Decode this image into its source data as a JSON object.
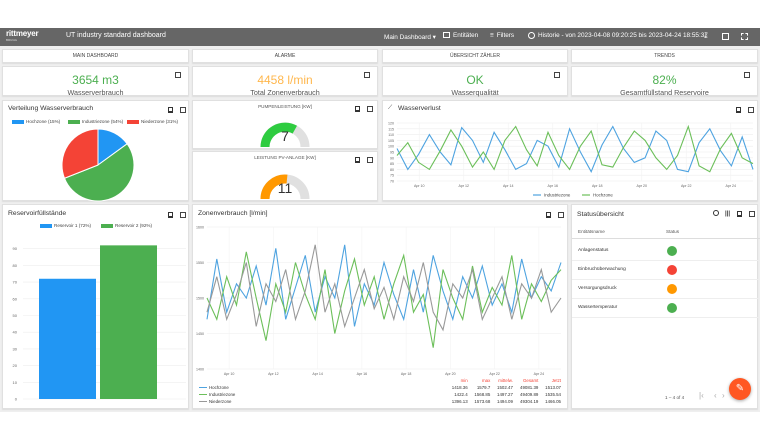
{
  "header": {
    "brand": "rittmeyer",
    "brand_sub": "BRUGG",
    "title": "UT industry standard dashboard",
    "menu": "Main Dashboard",
    "entities": "Entitäten",
    "filters": "Filters",
    "history": "Historie - von 2023-04-08 09:20:25 bis 2023-04-24 18:55:37"
  },
  "nav": [
    "MAIN DASHBOARD",
    "ALARME",
    "ÜBERSICHT ZÄHLER",
    "TRENDS"
  ],
  "kpis": [
    {
      "value": "3654 m3",
      "label": "Wasserverbrauch",
      "color": "#4caf50"
    },
    {
      "value": "4458 l/min",
      "label": "Total Zonenverbrauch",
      "color": "#ffb74d"
    },
    {
      "value": "OK",
      "label": "Wasserqualität",
      "color": "#4caf50"
    },
    {
      "value": "82%",
      "label": "Gesamtfüllstand Reservoire",
      "color": "#4caf50"
    }
  ],
  "pie": {
    "title": "Verteilung Wasserverbrauch",
    "legend": [
      "Hochzone (15%)",
      "Industriezone (54%)",
      "Niederzone (31%)"
    ]
  },
  "gauges": [
    {
      "title": "PUMPENLEISTUNG [KW]",
      "value": "7"
    },
    {
      "title": "LEISTUNG PV-ANLAGE [KW]",
      "value": "11"
    }
  ],
  "wasserverlust": {
    "title": "Wasserverlust",
    "legend": [
      "Industriezone",
      "Hochzone"
    ]
  },
  "reservoir": {
    "title": "Reservoirfüllstände",
    "legend": [
      "Reservoir 1 (72%)",
      "Reservoir 2 (92%)"
    ]
  },
  "zonen": {
    "title": "Zonenverbrauch [l/min]",
    "table": {
      "headers": [
        "min",
        "max",
        "mittelw.",
        "Gesamt",
        "Jetzt"
      ],
      "rows": [
        {
          "name": "Hochzone",
          "vals": [
            "1418.36",
            "1579.7",
            "1502.47",
            "49081.39",
            "1513.07"
          ]
        },
        {
          "name": "Industriezone",
          "vals": [
            "1422.4",
            "1568.85",
            "1497.27",
            "49409.89",
            "1535.54"
          ]
        },
        {
          "name": "Niederzone",
          "vals": [
            "1396.13",
            "1573.68",
            "1494.09",
            "49304.19",
            "1466.05"
          ]
        }
      ]
    }
  },
  "status": {
    "title": "Statusübersicht",
    "col_name": "Entitätsname",
    "col_status": "Status",
    "rows": [
      {
        "name": "Anlagenstatus",
        "color": "#4caf50"
      },
      {
        "name": "Einbruchüberwachung",
        "color": "#f44336"
      },
      {
        "name": "Versorgungsdruck",
        "color": "#ff9800"
      },
      {
        "name": "Wassertemperatur",
        "color": "#4caf50"
      }
    ],
    "pagination": "1 – 4 of 4"
  },
  "chart_data": [
    {
      "type": "pie",
      "title": "Verteilung Wasserverbrauch",
      "categories": [
        "Hochzone",
        "Industriezone",
        "Niederzone"
      ],
      "values": [
        15,
        54,
        31
      ],
      "colors": [
        "#2196f3",
        "#4caf50",
        "#f44336"
      ]
    },
    {
      "type": "bar",
      "title": "Reservoirfüllstände",
      "categories": [
        "Reservoir 1",
        "Reservoir 2"
      ],
      "values": [
        72,
        92
      ],
      "colors": [
        "#2196f3",
        "#4caf50"
      ],
      "ylim": [
        0,
        100
      ],
      "yticks": [
        0,
        10,
        20,
        30,
        40,
        50,
        60,
        70,
        80,
        90
      ]
    },
    {
      "type": "line",
      "title": "Wasserverlust",
      "ylim": [
        70,
        120
      ],
      "yticks": [
        70,
        75,
        80,
        85,
        90,
        95,
        100,
        105,
        110,
        115,
        120
      ],
      "xticks": [
        "Apr 10",
        "Apr 12",
        "Apr 14",
        "Apr 16",
        "Apr 18",
        "Apr 20",
        "Apr 22",
        "Apr 24"
      ],
      "series": [
        {
          "name": "Industriezone",
          "color": "#4ea3e0",
          "values": [
            98,
            80,
            93,
            110,
            95,
            84,
            116,
            105,
            86,
            112,
            97,
            80,
            85,
            105,
            100,
            82,
            115,
            95,
            78,
            101,
            117,
            98,
            86,
            90,
            113,
            105,
            80,
            78,
            103,
            115,
            96,
            83,
            108,
            80
          ]
        },
        {
          "name": "Hochzone",
          "color": "#6cbf5a",
          "values": [
            92,
            103,
            86,
            80,
            96,
            114,
            100,
            82,
            95,
            80,
            105,
            117,
            97,
            83,
            112,
            92,
            80,
            100,
            113,
            84,
            82,
            99,
            113,
            105,
            90,
            80,
            92,
            117,
            83,
            78,
            98,
            111,
            90,
            85
          ]
        }
      ]
    },
    {
      "type": "line",
      "title": "Zonenverbrauch [l/min]",
      "ylim": [
        1400,
        1600
      ],
      "yticks": [
        1400,
        1450,
        1500,
        1550,
        1600
      ],
      "xticks": [
        "Apr 10",
        "Apr 12",
        "Apr 14",
        "Apr 16",
        "Apr 18",
        "Apr 20",
        "Apr 22",
        "Apr 24"
      ],
      "series": [
        {
          "name": "Hochzone",
          "color": "#4ea3e0",
          "values": [
            1470,
            1555,
            1480,
            1520,
            1500,
            1545,
            1490,
            1570,
            1470,
            1515,
            1560,
            1480,
            1530,
            1500,
            1575,
            1460,
            1520,
            1490,
            1550,
            1505,
            1470,
            1540,
            1480,
            1560,
            1510,
            1470,
            1530,
            1500,
            1545,
            1490,
            1520,
            1480,
            1555,
            1500,
            1530,
            1510,
            1550
          ]
        },
        {
          "name": "Industriezone",
          "color": "#6cbf5a",
          "values": [
            1500,
            1470,
            1530,
            1490,
            1565,
            1500,
            1440,
            1520,
            1480,
            1550,
            1505,
            1470,
            1540,
            1450,
            1510,
            1555,
            1490,
            1530,
            1470,
            1520,
            1560,
            1480,
            1505,
            1430,
            1540,
            1500,
            1470,
            1545,
            1480,
            1515,
            1490,
            1560,
            1470,
            1520,
            1495,
            1525,
            1540
          ]
        },
        {
          "name": "Niederzone",
          "color": "#999999",
          "values": [
            1480,
            1530,
            1470,
            1505,
            1550,
            1460,
            1520,
            1495,
            1540,
            1470,
            1510,
            1575,
            1480,
            1520,
            1460,
            1500,
            1540,
            1485,
            1515,
            1470,
            1530,
            1495,
            1550,
            1480,
            1455,
            1520,
            1500,
            1540,
            1470,
            1500,
            1530,
            1470,
            1520,
            1500,
            1540,
            1480,
            1500
          ]
        }
      ]
    }
  ]
}
